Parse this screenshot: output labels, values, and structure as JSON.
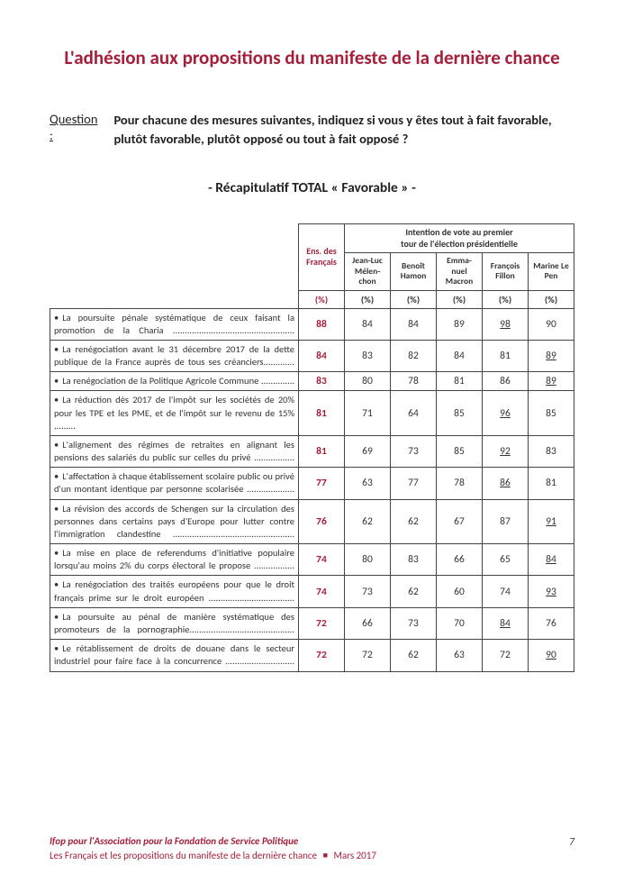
{
  "title": "L'adhésion aux propositions du manifeste de la dernière chance",
  "question": {
    "label": "Question :",
    "text": "Pour chacune des mesures suivantes, indiquez si vous y êtes tout à fait favorable, plutôt favorable, plutôt opposé ou tout à fait opposé ?"
  },
  "subtitle": "- Récapitulatif TOTAL « Favorable » -",
  "table": {
    "header": {
      "ens_line1": "Ens. des",
      "ens_line2": "Français",
      "intention_line1": "Intention de vote au premier",
      "intention_line2": "tour de l'élection présidentielle",
      "candidates": [
        "Jean-Luc Mélen-chon",
        "Benoît Hamon",
        "Emma-nuel Macron",
        "François Fillon",
        "Marine Le Pen"
      ],
      "pct": "(%)"
    },
    "rows": [
      {
        "label": "La poursuite pénale systématique de ceux faisant la promotion de la Charia ...................................................",
        "main": "88",
        "cells": [
          {
            "v": "84"
          },
          {
            "v": "84"
          },
          {
            "v": "89"
          },
          {
            "v": "98",
            "u": true
          },
          {
            "v": "90"
          }
        ]
      },
      {
        "label": "La renégociation avant le 31 décembre 2017 de la dette publique de la France auprès de tous ses créanciers.............",
        "main": "84",
        "cells": [
          {
            "v": "83"
          },
          {
            "v": "82"
          },
          {
            "v": "84"
          },
          {
            "v": "81"
          },
          {
            "v": "89",
            "u": true
          }
        ]
      },
      {
        "label": "La renégociation de la Politique Agricole Commune ..............",
        "main": "83",
        "cells": [
          {
            "v": "80"
          },
          {
            "v": "78"
          },
          {
            "v": "81"
          },
          {
            "v": "86"
          },
          {
            "v": "89",
            "u": true
          }
        ]
      },
      {
        "label": "La réduction dès 2017 de l'impôt sur les sociétés de 20% pour les TPE et les PME, et de l'impôt sur le revenu de 15% .........",
        "main": "81",
        "cells": [
          {
            "v": "71"
          },
          {
            "v": "64"
          },
          {
            "v": "85"
          },
          {
            "v": "96",
            "u": true
          },
          {
            "v": "85"
          }
        ]
      },
      {
        "label": "L'alignement des régimes de retraites en alignant les pensions des salariés du public sur celles du privé .................",
        "main": "81",
        "cells": [
          {
            "v": "69"
          },
          {
            "v": "73"
          },
          {
            "v": "85"
          },
          {
            "v": "92",
            "u": true
          },
          {
            "v": "83"
          }
        ]
      },
      {
        "label": "L'affectation à chaque établissement scolaire public ou privé d'un montant identique par personne scolarisée ....................",
        "main": "77",
        "cells": [
          {
            "v": "63"
          },
          {
            "v": "77"
          },
          {
            "v": "78"
          },
          {
            "v": "86",
            "u": true
          },
          {
            "v": "81"
          }
        ]
      },
      {
        "label": "La révision des accords de Schengen sur la circulation des personnes dans certains pays d'Europe pour lutter contre l'immigration clandestine ...................................................",
        "main": "76",
        "cells": [
          {
            "v": "62"
          },
          {
            "v": "62"
          },
          {
            "v": "67"
          },
          {
            "v": "87"
          },
          {
            "v": "91",
            "u": true
          }
        ]
      },
      {
        "label": "La mise en place de referendums d'initiative populaire lorsqu'au moins 2% du corps électoral le propose .................",
        "main": "74",
        "cells": [
          {
            "v": "80"
          },
          {
            "v": "83"
          },
          {
            "v": "66"
          },
          {
            "v": "65"
          },
          {
            "v": "84",
            "u": true
          }
        ]
      },
      {
        "label": "La renégociation des traités européens pour que le droit français prime sur le droit européen ....................................",
        "main": "74",
        "cells": [
          {
            "v": "73"
          },
          {
            "v": "62"
          },
          {
            "v": "60"
          },
          {
            "v": "74"
          },
          {
            "v": "93",
            "u": true
          }
        ]
      },
      {
        "label": "La poursuite au pénal de manière systématique des promoteurs de la pornographie............................................",
        "main": "72",
        "cells": [
          {
            "v": "66"
          },
          {
            "v": "73"
          },
          {
            "v": "70"
          },
          {
            "v": "84",
            "u": true
          },
          {
            "v": "76"
          }
        ]
      },
      {
        "label": "Le rétablissement de droits de douane dans le secteur industriel pour faire face à la concurrence .............................",
        "main": "72",
        "cells": [
          {
            "v": "72"
          },
          {
            "v": "62"
          },
          {
            "v": "63"
          },
          {
            "v": "72"
          },
          {
            "v": "90",
            "u": true
          }
        ]
      }
    ]
  },
  "footer": {
    "line1": "Ifop pour l'Association pour la Fondation de Service Politique",
    "line2a": "Les Français et les propositions du manifeste de la dernière chance",
    "line2b": "Mars 2017",
    "page": "7"
  },
  "colors": {
    "accent": "#a61f3a",
    "text": "#333333",
    "border": "#444444"
  }
}
